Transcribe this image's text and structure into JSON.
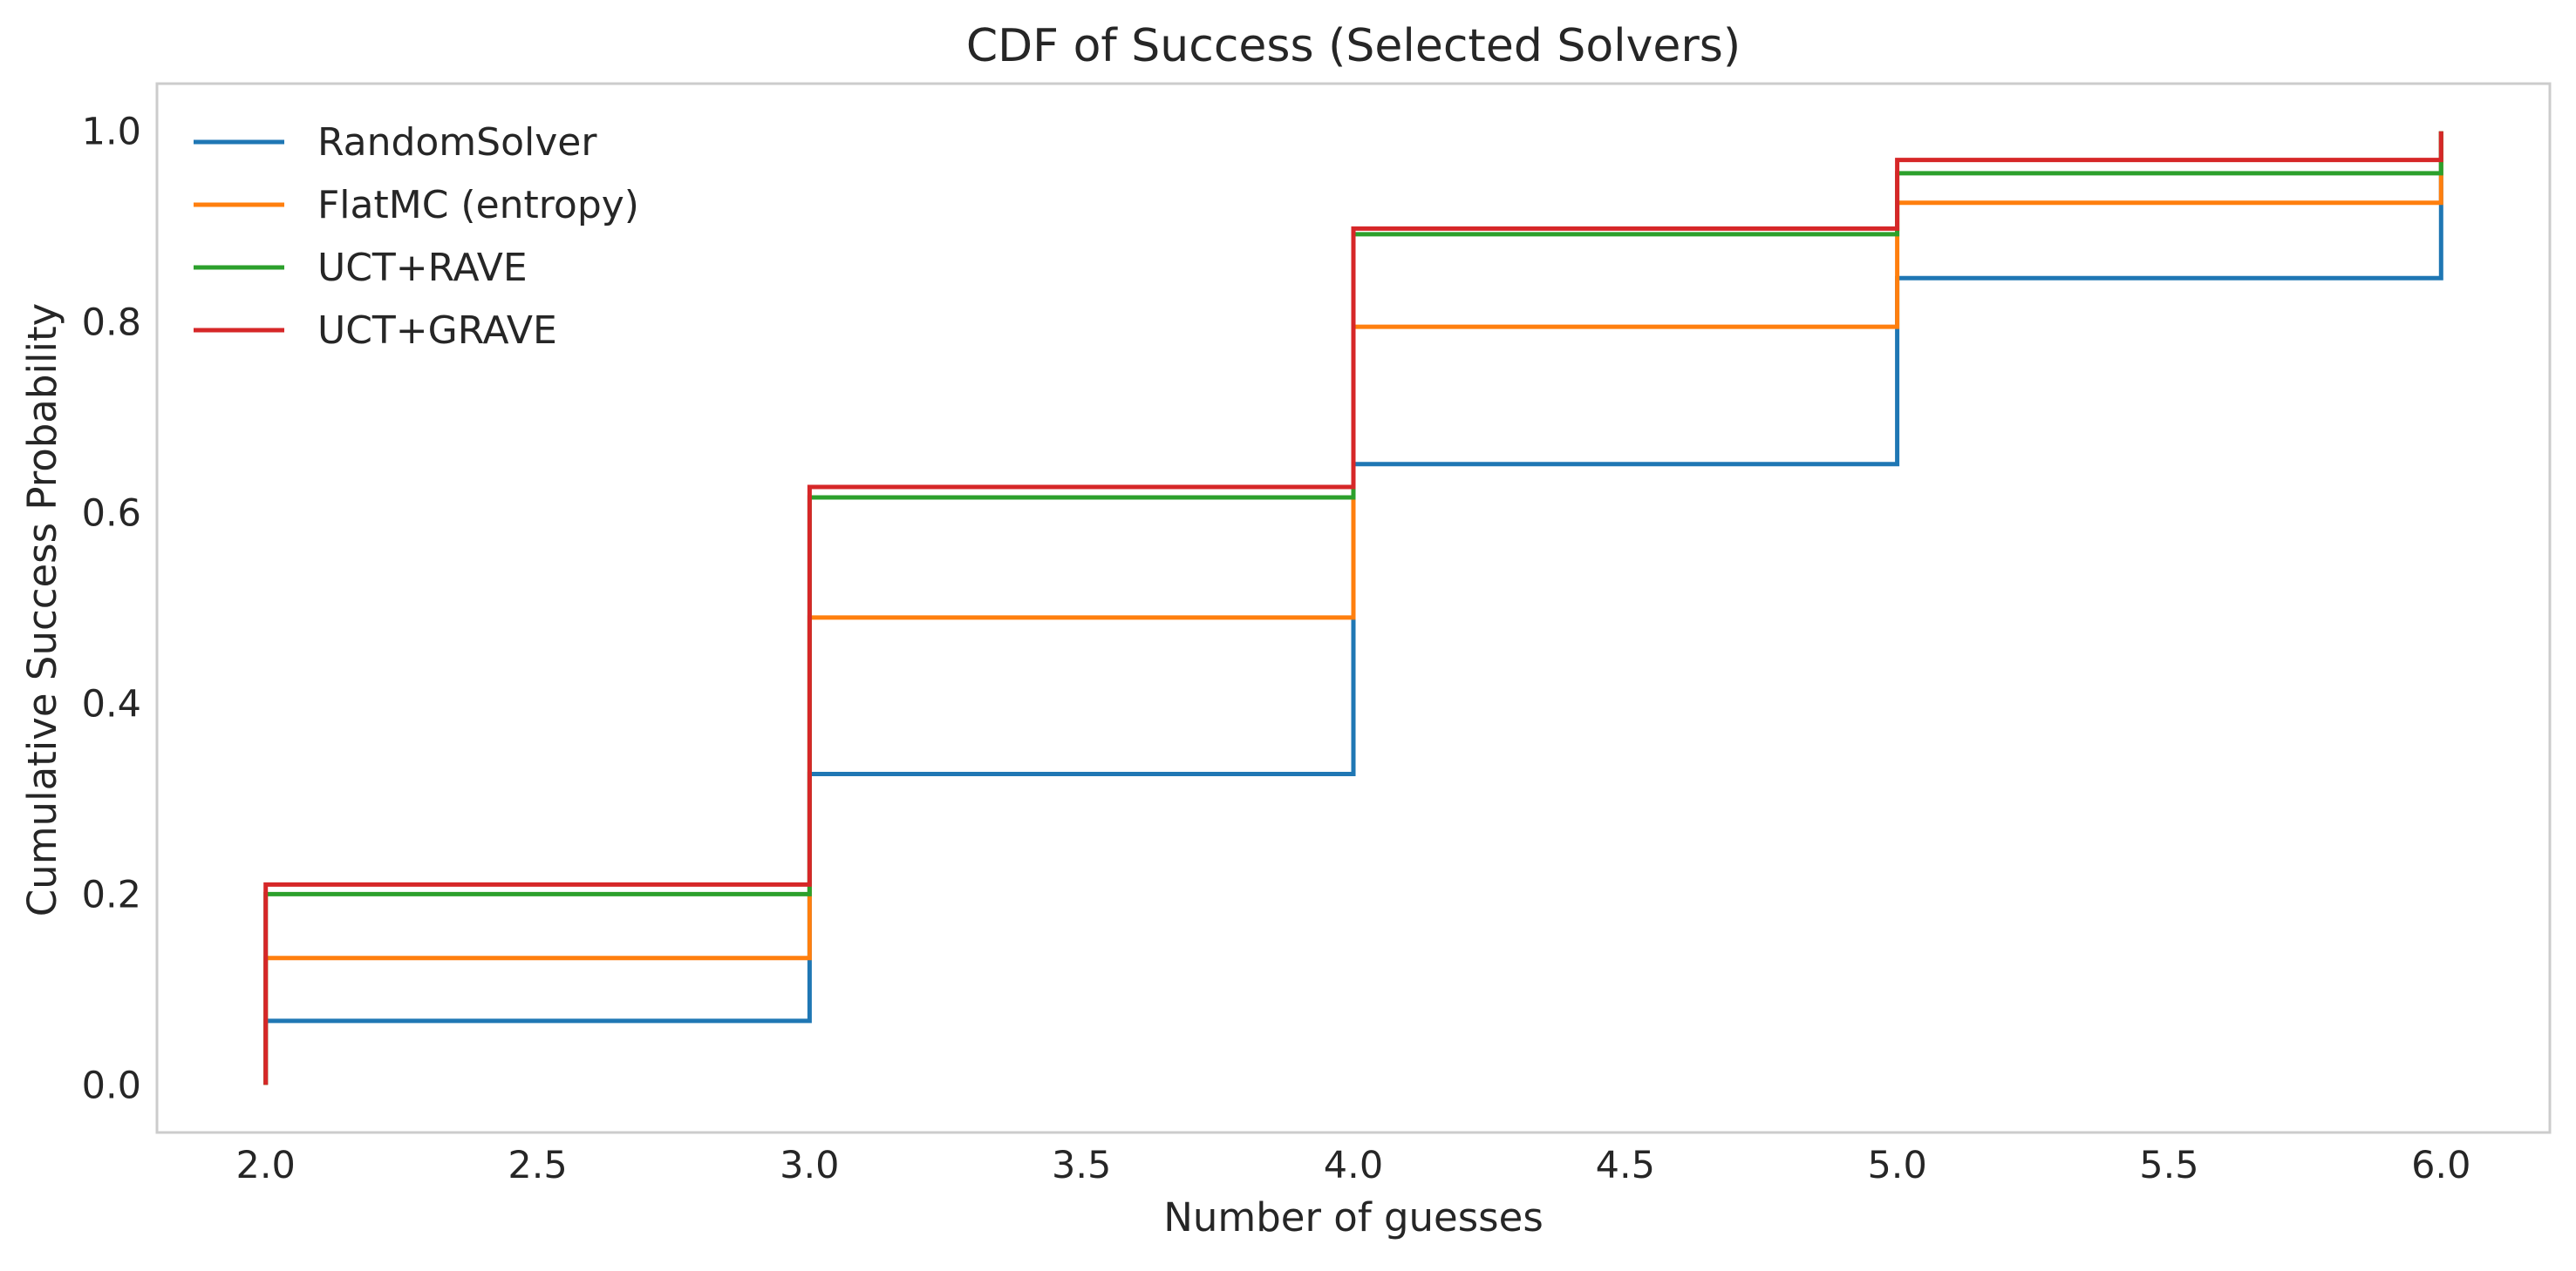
{
  "chart_data": {
    "type": "line",
    "step": "post",
    "title": "CDF of Success (Selected Solvers)",
    "xlabel": "Number of guesses",
    "ylabel": "Cumulative Success Probability",
    "xlim": [
      1.8,
      6.2
    ],
    "ylim": [
      -0.05,
      1.05
    ],
    "xticks": [
      2.0,
      2.5,
      3.0,
      3.5,
      4.0,
      4.5,
      5.0,
      5.5,
      6.0
    ],
    "xtick_labels": [
      "2.0",
      "2.5",
      "3.0",
      "3.5",
      "4.0",
      "4.5",
      "5.0",
      "5.5",
      "6.0"
    ],
    "yticks": [
      0.0,
      0.2,
      0.4,
      0.6,
      0.8,
      1.0
    ],
    "ytick_labels": [
      "0.0",
      "0.2",
      "0.4",
      "0.6",
      "0.8",
      "1.0"
    ],
    "grid": false,
    "legend_position": "top-left",
    "x": [
      2,
      3,
      4,
      5,
      6
    ],
    "series": [
      {
        "name": "RandomSolver",
        "color": "#1f77b4",
        "values": [
          0.067,
          0.326,
          0.651,
          0.846,
          1.0
        ]
      },
      {
        "name": "FlatMC (entropy)",
        "color": "#ff7f0e",
        "values": [
          0.133,
          0.49,
          0.795,
          0.925,
          1.0
        ]
      },
      {
        "name": "UCT+RAVE",
        "color": "#2ca02c",
        "values": [
          0.2,
          0.616,
          0.892,
          0.956,
          1.0
        ]
      },
      {
        "name": "UCT+GRAVE",
        "color": "#d62728",
        "values": [
          0.21,
          0.627,
          0.898,
          0.97,
          1.0
        ]
      }
    ]
  }
}
